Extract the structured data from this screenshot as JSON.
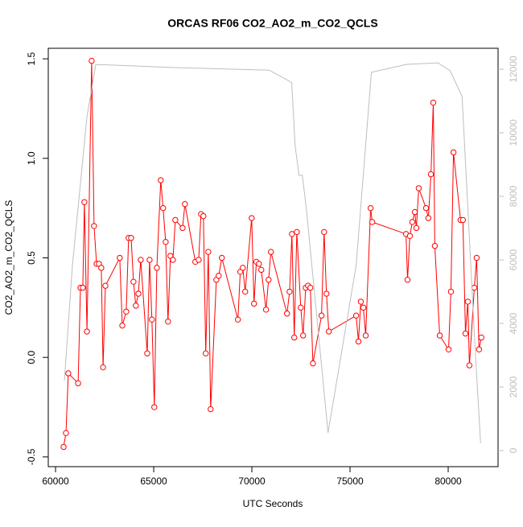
{
  "chart_data": {
    "type": "line",
    "title": "ORCAS RF06 CO2_AO2_m_CO2_QCLS",
    "x_label": "UTC Seconds",
    "y_label": "CO2_AO2_m_CO2_QCLS",
    "xlim": [
      59630,
      82540
    ],
    "xticks": [
      60000,
      65000,
      70000,
      75000,
      80000
    ],
    "ylim": [
      -0.549,
      1.553
    ],
    "yticks": [
      -0.5,
      {
        "value": 0,
        "label": "0.0"
      },
      0.5,
      {
        "value": 1,
        "label": "1.0"
      },
      1.5
    ],
    "y2lim": [
      -506,
      12658
    ],
    "y2ticks": [
      0,
      2000,
      4000,
      6000,
      8000,
      10000,
      12000
    ],
    "series": [
      {
        "color": "#ff0000",
        "marker": "circle",
        "x": [
          60410,
          60530,
          60650,
          61150,
          61270,
          61390,
          61470,
          61600,
          61840,
          61960,
          62090,
          62210,
          62330,
          62420,
          62540,
          63270,
          63400,
          63600,
          63720,
          63850,
          63970,
          64090,
          64220,
          64340,
          64670,
          64790,
          64910,
          65030,
          65160,
          65360,
          65480,
          65610,
          65730,
          65850,
          65980,
          66100,
          66470,
          66590,
          67120,
          67290,
          67410,
          67530,
          67650,
          67780,
          67900,
          68190,
          68310,
          68470,
          69290,
          69410,
          69540,
          69660,
          69990,
          70110,
          70230,
          70360,
          70480,
          70720,
          70850,
          70970,
          71790,
          71920,
          72040,
          72160,
          72290,
          72490,
          72610,
          72740,
          72860,
          72980,
          73110,
          73550,
          73680,
          73800,
          73920,
          75310,
          75430,
          75550,
          75680,
          75800,
          76050,
          76130,
          77850,
          77930,
          78050,
          78170,
          78300,
          78380,
          78500,
          78870,
          78990,
          79120,
          79240,
          79320,
          79570,
          80020,
          80140,
          80270,
          80630,
          80750,
          80880,
          81000,
          81080,
          81330,
          81450,
          81570,
          81690
        ],
        "values": [
          -0.45,
          -0.38,
          -0.08,
          -0.13,
          0.35,
          0.35,
          0.78,
          0.13,
          1.49,
          0.66,
          0.47,
          0.47,
          0.45,
          -0.05,
          0.36,
          0.5,
          0.16,
          0.23,
          0.6,
          0.6,
          0.38,
          0.26,
          0.32,
          0.49,
          0.02,
          0.49,
          0.19,
          -0.25,
          0.45,
          0.89,
          0.75,
          0.58,
          0.18,
          0.51,
          0.49,
          0.69,
          0.65,
          0.77,
          0.48,
          0.49,
          0.72,
          0.71,
          0.02,
          0.53,
          -0.26,
          0.39,
          0.41,
          0.5,
          0.19,
          0.43,
          0.45,
          0.33,
          0.7,
          0.27,
          0.48,
          0.47,
          0.44,
          0.24,
          0.39,
          0.53,
          0.22,
          0.33,
          0.62,
          0.1,
          0.63,
          0.25,
          0.11,
          0.35,
          0.36,
          0.35,
          -0.03,
          0.21,
          0.63,
          0.32,
          0.13,
          0.21,
          0.08,
          0.28,
          0.25,
          0.11,
          0.75,
          0.68,
          0.62,
          0.39,
          0.61,
          0.68,
          0.73,
          0.65,
          0.85,
          0.75,
          0.7,
          0.92,
          1.28,
          0.56,
          0.11,
          0.04,
          0.33,
          1.03,
          0.69,
          0.69,
          0.12,
          0.28,
          -0.04,
          0.35,
          0.5,
          0.04,
          0.1
        ]
      },
      {
        "color": "#bebebe",
        "axis": "y2",
        "x": [
          60450,
          60860,
          61600,
          62050,
          66060,
          70890,
          71830,
          72030,
          72200,
          72400,
          72570,
          72770,
          73880,
          75310,
          76090,
          77850,
          79480,
          80100,
          80710,
          81330,
          81650
        ],
        "values": [
          2200,
          5820,
          10510,
          12150,
          12050,
          11970,
          11650,
          11570,
          9620,
          8660,
          8660,
          7650,
          560,
          5820,
          11900,
          12150,
          12200,
          11950,
          11140,
          3670,
          230
        ]
      }
    ]
  }
}
